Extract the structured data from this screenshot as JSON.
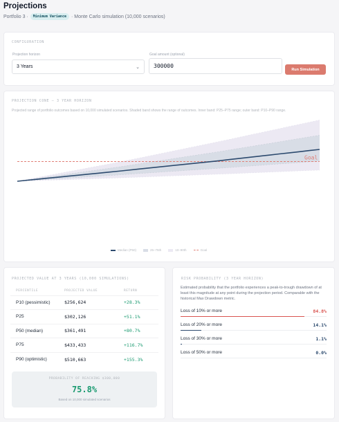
{
  "header": {
    "title": "Projections",
    "portfolio": "Portfolio 3 ·",
    "badge": "Minimum Variance",
    "sim_desc": "· Monte Carlo simulation (10,000 scenarios)"
  },
  "config": {
    "section_label": "CONFIGURATION",
    "horizon_label": "Projection horizon",
    "horizon_value": "3 Years",
    "goal_label": "Goal amount (optional)",
    "goal_value": "300000",
    "run_button": "Run Simulation"
  },
  "cone": {
    "section_label": "PROJECTION CONE — 3 YEAR HORIZON",
    "description": "Projected range of portfolio outcomes based on 10,000 simulated scenarios. Shaded band shows the range of outcomes. Inner band: P25–P75 range; outer band: P10–P90 range.",
    "goal_label": "Goal",
    "legend": [
      "Median (P50)",
      "25–75th",
      "10–90th",
      "Goal"
    ],
    "colors": {
      "median": "#2c4a6e",
      "goal": "#e07f76",
      "inner": "#d8dde6",
      "outer": "#ece9f3"
    }
  },
  "chart_data": {
    "type": "area",
    "x": [
      0,
      1,
      2,
      3
    ],
    "xlabel": "",
    "ylabel": "",
    "ylim": [
      0,
      600000
    ],
    "goal": 300000,
    "series": [
      {
        "name": "P90",
        "values": [
          200000,
          296000,
          401000,
          510663
        ]
      },
      {
        "name": "P75",
        "values": [
          200000,
          272000,
          350000,
          433433
        ]
      },
      {
        "name": "P50",
        "values": [
          200000,
          251000,
          304000,
          361491
        ]
      },
      {
        "name": "P25",
        "values": [
          200000,
          232000,
          266000,
          302126
        ]
      },
      {
        "name": "P10",
        "values": [
          200000,
          217000,
          236000,
          256624
        ]
      }
    ]
  },
  "table": {
    "section_label": "PROJECTED VALUE AT 3 YEARS (10,000 SIMULATIONS)",
    "headers": [
      "PERCENTILE",
      "PROJECTED VALUE",
      "RETURN"
    ],
    "rows": [
      {
        "percentile": "P10 (pessimistic)",
        "value": "$256,624",
        "ret": "+28.3%"
      },
      {
        "percentile": "P25",
        "value": "$302,126",
        "ret": "+51.1%"
      },
      {
        "percentile": "P50 (median)",
        "value": "$361,491",
        "ret": "+80.7%"
      },
      {
        "percentile": "P75",
        "value": "$433,433",
        "ret": "+116.7%"
      },
      {
        "percentile": "P90 (optimistic)",
        "value": "$510,663",
        "ret": "+155.3%"
      }
    ]
  },
  "probability": {
    "label": "PROBABILITY OF REACHING $300,000",
    "value": "75.8%",
    "note": "Based on 10,000 simulated scenarios"
  },
  "drawdown": {
    "section_label": "RISK PROBABILITY (3 YEAR HORIZON)",
    "description": "Estimated probability that the portfolio experiences a peak-to-trough drawdown of at least this magnitude at any point during the projection period. Comparable with the historical Max Drawdown metric.",
    "rows": [
      {
        "label": "Loss of 10% or more",
        "value": "84.8%",
        "fraction": 0.848,
        "color": "#d9534f"
      },
      {
        "label": "Loss of 20% or more",
        "value": "14.1%",
        "fraction": 0.141,
        "color": "#2c4a6e"
      },
      {
        "label": "Loss of 30% or more",
        "value": "1.1%",
        "fraction": 0.011,
        "color": "#2c4a6e"
      },
      {
        "label": "Loss of 50% or more",
        "value": "0.0%",
        "fraction": 0.0,
        "color": "#2c4a6e"
      }
    ]
  }
}
